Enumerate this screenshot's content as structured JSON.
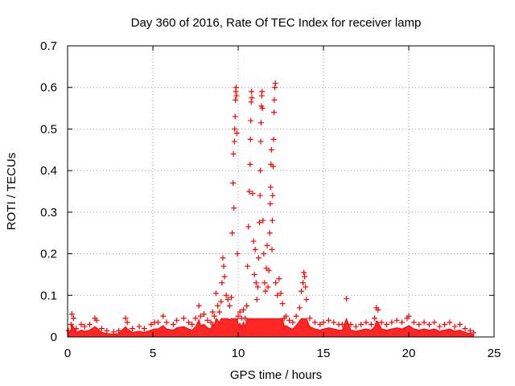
{
  "chart_data": {
    "type": "scatter",
    "title": "Day 360 of 2016, Rate Of TEC Index for receiver lamp",
    "xlabel": "GPS time / hours",
    "ylabel": "ROTI / TECUs",
    "xlim": [
      0,
      25
    ],
    "ylim": [
      0,
      0.7
    ],
    "xticks": [
      "0",
      "5",
      "10",
      "15",
      "20",
      "25"
    ],
    "yticks": [
      "0",
      "0.1",
      "0.2",
      "0.3",
      "0.4",
      "0.5",
      "0.6",
      "0.7"
    ],
    "xtick_values": [
      0,
      5,
      10,
      15,
      20,
      25
    ],
    "ytick_values": [
      0,
      0.1,
      0.2,
      0.3,
      0.4,
      0.5,
      0.6,
      0.7
    ],
    "grid": true,
    "marker": "+",
    "color": "#ff0000",
    "series": [
      {
        "name": "ROTI",
        "points": [
          [
            0.05,
            0.015
          ],
          [
            0.2,
            0.03
          ],
          [
            0.25,
            0.055
          ],
          [
            0.35,
            0.045
          ],
          [
            0.5,
            0.02
          ],
          [
            0.8,
            0.03
          ],
          [
            1.0,
            0.025
          ],
          [
            1.3,
            0.03
          ],
          [
            1.6,
            0.045
          ],
          [
            1.7,
            0.04
          ],
          [
            2.0,
            0.02
          ],
          [
            2.3,
            0.015
          ],
          [
            2.7,
            0.012
          ],
          [
            3.0,
            0.015
          ],
          [
            3.4,
            0.045
          ],
          [
            3.5,
            0.035
          ],
          [
            3.8,
            0.02
          ],
          [
            4.2,
            0.025
          ],
          [
            4.5,
            0.02
          ],
          [
            4.9,
            0.03
          ],
          [
            5.1,
            0.035
          ],
          [
            5.3,
            0.035
          ],
          [
            5.6,
            0.05
          ],
          [
            5.8,
            0.035
          ],
          [
            6.2,
            0.03
          ],
          [
            6.4,
            0.04
          ],
          [
            6.8,
            0.045
          ],
          [
            7.1,
            0.035
          ],
          [
            7.3,
            0.03
          ],
          [
            7.5,
            0.045
          ],
          [
            7.7,
            0.075
          ],
          [
            7.8,
            0.05
          ],
          [
            8.0,
            0.055
          ],
          [
            8.2,
            0.04
          ],
          [
            8.4,
            0.035
          ],
          [
            8.5,
            0.06
          ],
          [
            8.6,
            0.05
          ],
          [
            8.7,
            0.105
          ],
          [
            8.8,
            0.075
          ],
          [
            8.9,
            0.06
          ],
          [
            9.0,
            0.085
          ],
          [
            9.05,
            0.13
          ],
          [
            9.1,
            0.19
          ],
          [
            9.15,
            0.17
          ],
          [
            9.2,
            0.145
          ],
          [
            9.3,
            0.1
          ],
          [
            9.4,
            0.09
          ],
          [
            9.5,
            0.075
          ],
          [
            9.6,
            0.095
          ],
          [
            9.65,
            0.25
          ],
          [
            9.7,
            0.37
          ],
          [
            9.72,
            0.44
          ],
          [
            9.75,
            0.31
          ],
          [
            9.78,
            0.47
          ],
          [
            9.8,
            0.5
          ],
          [
            9.82,
            0.53
          ],
          [
            9.84,
            0.57
          ],
          [
            9.86,
            0.59
          ],
          [
            9.88,
            0.6
          ],
          [
            9.9,
            0.58
          ],
          [
            9.92,
            0.49
          ],
          [
            9.95,
            0.2
          ],
          [
            10.0,
            0.05
          ],
          [
            10.1,
            0.06
          ],
          [
            10.2,
            0.045
          ],
          [
            10.3,
            0.065
          ],
          [
            10.4,
            0.045
          ],
          [
            10.5,
            0.075
          ],
          [
            10.55,
            0.17
          ],
          [
            10.6,
            0.265
          ],
          [
            10.65,
            0.35
          ],
          [
            10.7,
            0.415
          ],
          [
            10.72,
            0.475
          ],
          [
            10.74,
            0.52
          ],
          [
            10.76,
            0.565
          ],
          [
            10.78,
            0.59
          ],
          [
            10.8,
            0.575
          ],
          [
            10.85,
            0.345
          ],
          [
            10.9,
            0.23
          ],
          [
            10.95,
            0.15
          ],
          [
            11.0,
            0.21
          ],
          [
            11.05,
            0.13
          ],
          [
            11.1,
            0.09
          ],
          [
            11.15,
            0.12
          ],
          [
            11.2,
            0.19
          ],
          [
            11.25,
            0.275
          ],
          [
            11.28,
            0.34
          ],
          [
            11.3,
            0.4
          ],
          [
            11.32,
            0.47
          ],
          [
            11.34,
            0.515
          ],
          [
            11.36,
            0.555
          ],
          [
            11.38,
            0.58
          ],
          [
            11.4,
            0.59
          ],
          [
            11.42,
            0.55
          ],
          [
            11.45,
            0.28
          ],
          [
            11.5,
            0.2
          ],
          [
            11.55,
            0.13
          ],
          [
            11.6,
            0.11
          ],
          [
            11.65,
            0.165
          ],
          [
            11.7,
            0.22
          ],
          [
            11.75,
            0.12
          ],
          [
            11.8,
            0.16
          ],
          [
            11.85,
            0.25
          ],
          [
            11.88,
            0.32
          ],
          [
            11.9,
            0.36
          ],
          [
            11.92,
            0.415
          ],
          [
            11.95,
            0.45
          ],
          [
            11.98,
            0.21
          ],
          [
            12.0,
            0.28
          ],
          [
            12.02,
            0.34
          ],
          [
            12.05,
            0.41
          ],
          [
            12.08,
            0.475
          ],
          [
            12.1,
            0.54
          ],
          [
            12.12,
            0.57
          ],
          [
            12.15,
            0.6
          ],
          [
            12.18,
            0.61
          ],
          [
            12.2,
            0.13
          ],
          [
            12.3,
            0.1
          ],
          [
            12.4,
            0.14
          ],
          [
            12.5,
            0.105
          ],
          [
            12.6,
            0.08
          ],
          [
            12.7,
            0.045
          ],
          [
            12.8,
            0.05
          ],
          [
            13.0,
            0.04
          ],
          [
            13.2,
            0.035
          ],
          [
            13.4,
            0.05
          ],
          [
            13.6,
            0.07
          ],
          [
            13.7,
            0.11
          ],
          [
            13.8,
            0.13
          ],
          [
            13.85,
            0.155
          ],
          [
            13.9,
            0.145
          ],
          [
            13.95,
            0.12
          ],
          [
            14.0,
            0.09
          ],
          [
            14.2,
            0.045
          ],
          [
            14.5,
            0.035
          ],
          [
            14.8,
            0.03
          ],
          [
            15.0,
            0.035
          ],
          [
            15.3,
            0.04
          ],
          [
            15.6,
            0.035
          ],
          [
            15.9,
            0.03
          ],
          [
            16.1,
            0.03
          ],
          [
            16.35,
            0.092
          ],
          [
            16.6,
            0.03
          ],
          [
            16.9,
            0.025
          ],
          [
            17.2,
            0.03
          ],
          [
            17.5,
            0.035
          ],
          [
            17.8,
            0.03
          ],
          [
            18.0,
            0.045
          ],
          [
            18.1,
            0.07
          ],
          [
            18.2,
            0.065
          ],
          [
            18.4,
            0.035
          ],
          [
            18.7,
            0.03
          ],
          [
            19.0,
            0.035
          ],
          [
            19.3,
            0.04
          ],
          [
            19.6,
            0.035
          ],
          [
            19.9,
            0.045
          ],
          [
            20.0,
            0.05
          ],
          [
            20.3,
            0.035
          ],
          [
            20.6,
            0.03
          ],
          [
            20.9,
            0.035
          ],
          [
            21.2,
            0.03
          ],
          [
            21.5,
            0.035
          ],
          [
            21.8,
            0.025
          ],
          [
            22.1,
            0.03
          ],
          [
            22.4,
            0.035
          ],
          [
            22.7,
            0.025
          ],
          [
            23.0,
            0.03
          ],
          [
            23.3,
            0.02
          ],
          [
            23.6,
            0.015
          ],
          [
            23.8,
            0.01
          ]
        ]
      }
    ]
  }
}
